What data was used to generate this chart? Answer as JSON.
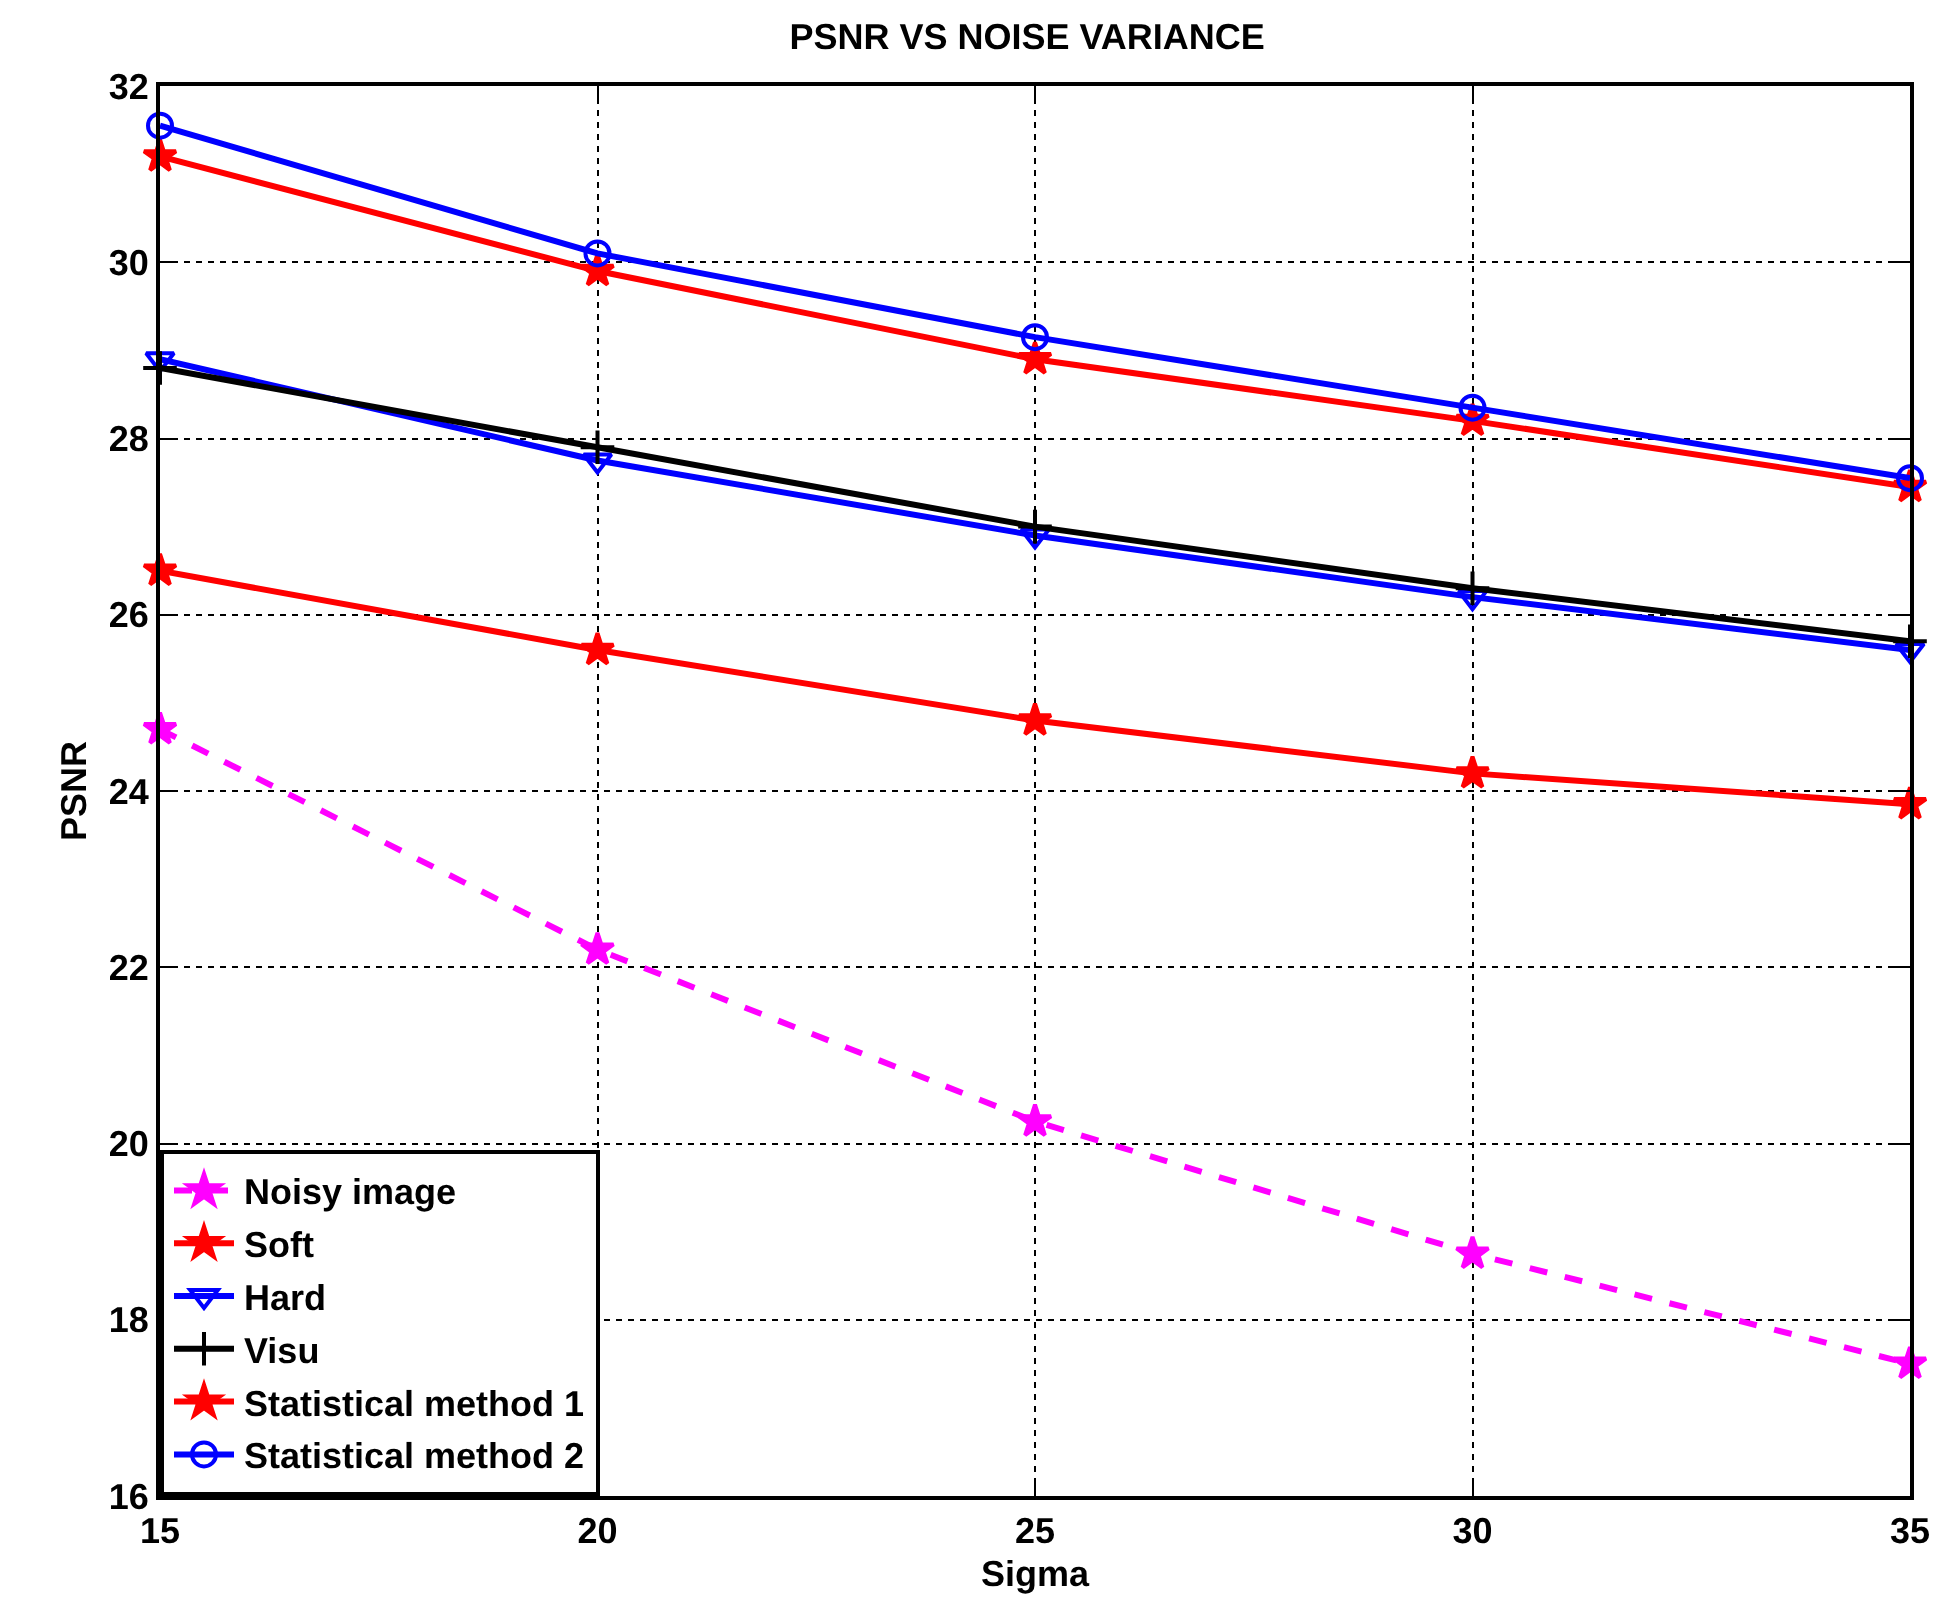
{
  "chart_data": {
    "type": "line",
    "title": "PSNR VS NOISE VARIANCE",
    "xlabel": "Sigma",
    "ylabel": "PSNR",
    "x": [
      15,
      20,
      25,
      30,
      35
    ],
    "series": [
      {
        "name": "Noisy image",
        "color": "#ff00ff",
        "marker": "star",
        "line_style": "dashed",
        "values": [
          24.7,
          22.2,
          20.25,
          18.75,
          17.5
        ]
      },
      {
        "name": "Soft",
        "color": "#ff0000",
        "marker": "star",
        "line_style": "solid",
        "values": [
          26.5,
          25.6,
          24.8,
          24.2,
          23.85
        ]
      },
      {
        "name": "Hard",
        "color": "#0000ff",
        "marker": "triangle",
        "line_style": "solid",
        "values": [
          28.9,
          27.75,
          26.9,
          26.2,
          25.6
        ]
      },
      {
        "name": "Visu",
        "color": "#000000",
        "marker": "cross",
        "line_style": "solid",
        "values": [
          28.8,
          27.9,
          27.0,
          26.3,
          25.7
        ]
      },
      {
        "name": "Statistical method 1",
        "color": "#ff0000",
        "marker": "star",
        "line_style": "solid",
        "values": [
          31.2,
          29.9,
          28.9,
          28.2,
          27.45
        ]
      },
      {
        "name": "Statistical method 2",
        "color": "#0000ff",
        "marker": "circle",
        "line_style": "solid",
        "values": [
          31.55,
          30.1,
          29.15,
          28.35,
          27.55
        ]
      }
    ],
    "xlim": [
      15,
      35
    ],
    "xticks": [
      15,
      20,
      25,
      30,
      35
    ],
    "ylim": [
      16,
      32
    ],
    "yticks": [
      16,
      18,
      20,
      22,
      24,
      26,
      28,
      30,
      32
    ],
    "grid": true,
    "legend": "bottom left"
  }
}
